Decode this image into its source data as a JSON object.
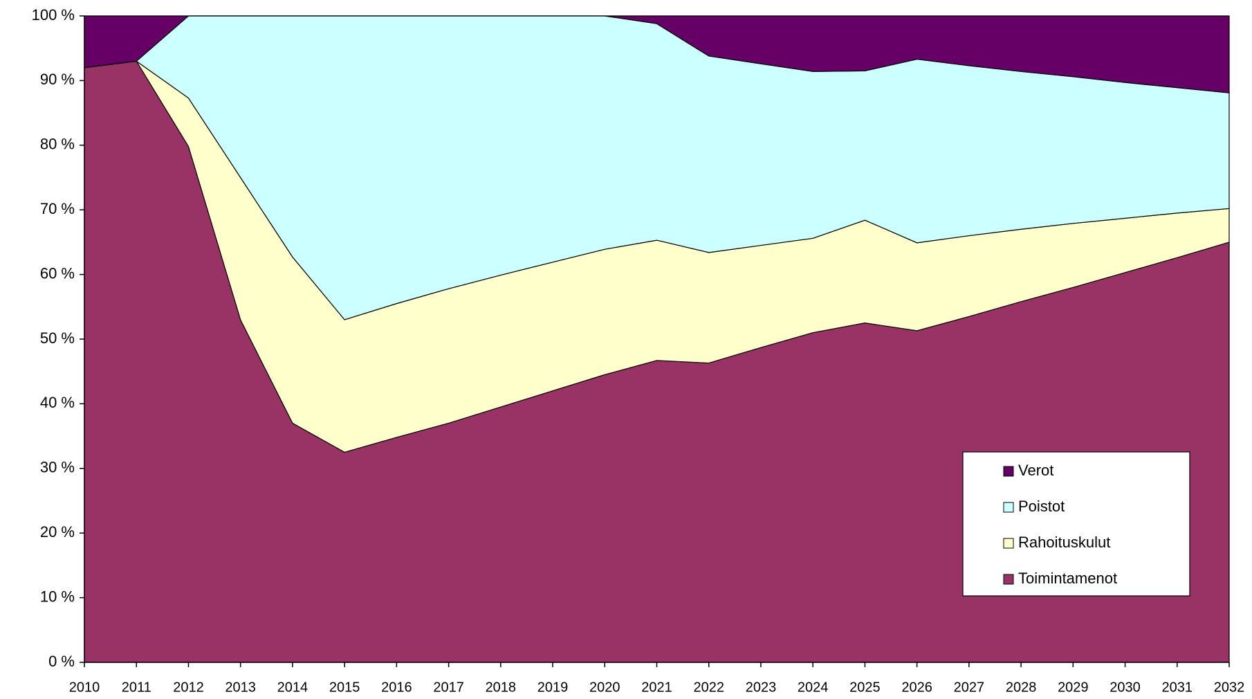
{
  "chart_data": {
    "type": "stacked_area",
    "categories": [
      "2010",
      "2011",
      "2012",
      "2013",
      "2014",
      "2015",
      "2016",
      "2017",
      "2018",
      "2019",
      "2020",
      "2021",
      "2022",
      "2023",
      "2024",
      "2025",
      "2026",
      "2027",
      "2028",
      "2029",
      "2030",
      "2031",
      "2032"
    ],
    "series": [
      {
        "name": "Toimintamenot",
        "color": "#993366",
        "values": [
          92,
          93,
          79.8,
          53,
          37,
          32.5,
          34.8,
          37,
          39.5,
          42,
          44.5,
          46.7,
          46.3,
          48.7,
          51,
          52.5,
          51.3,
          53.5,
          55.8,
          58,
          60.3,
          62.6,
          65
        ]
      },
      {
        "name": "Rahoituskulut",
        "color": "#ffffcc",
        "values": [
          0,
          0,
          7.5,
          22,
          25.7,
          20.5,
          20.7,
          20.8,
          20.4,
          19.9,
          19.4,
          18.6,
          17.1,
          15.8,
          14.6,
          15.9,
          13.6,
          12.5,
          11.2,
          9.9,
          8.4,
          6.9,
          5.2
        ]
      },
      {
        "name": "Poistot",
        "color": "#ccffff",
        "values": [
          0,
          0,
          12.7,
          25,
          37.3,
          47,
          44.5,
          42.2,
          40.1,
          38.1,
          36.1,
          33.5,
          30.4,
          28.1,
          25.8,
          23.1,
          28.4,
          26.3,
          24.4,
          22.7,
          21,
          19.4,
          17.9
        ]
      },
      {
        "name": "Verot",
        "color": "#660066",
        "values": [
          8,
          7,
          0,
          0,
          0,
          0,
          0,
          0,
          0,
          0,
          0,
          1.2,
          6.2,
          7.4,
          8.6,
          8.5,
          6.7,
          7.7,
          8.6,
          9.4,
          10.3,
          11.1,
          11.9
        ]
      }
    ],
    "ylim": [
      0,
      100
    ],
    "yticks": [
      {
        "value": 0,
        "label": "0 %"
      },
      {
        "value": 10,
        "label": "10 %"
      },
      {
        "value": 20,
        "label": "20 %"
      },
      {
        "value": 30,
        "label": "30 %"
      },
      {
        "value": 40,
        "label": "40 %"
      },
      {
        "value": 50,
        "label": "50 %"
      },
      {
        "value": 60,
        "label": "60 %"
      },
      {
        "value": 70,
        "label": "70 %"
      },
      {
        "value": 80,
        "label": "80 %"
      },
      {
        "value": 90,
        "label": "90 %"
      },
      {
        "value": 100,
        "label": "100 %"
      }
    ],
    "legend": "lower-right"
  }
}
